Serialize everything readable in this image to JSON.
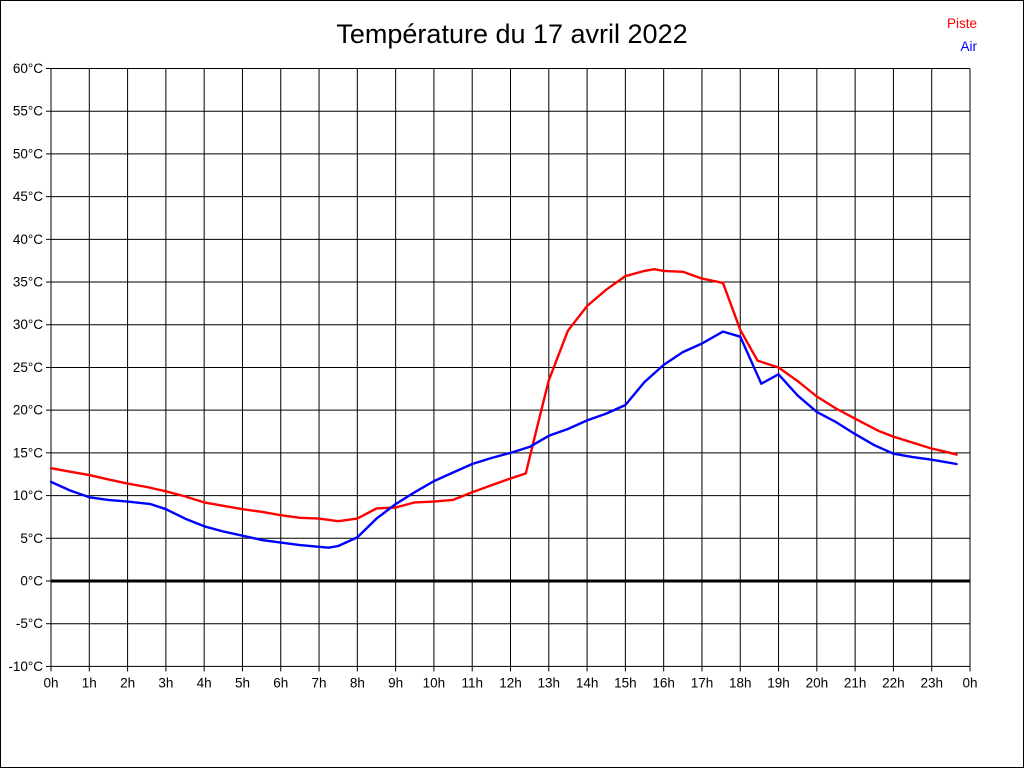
{
  "page": {
    "background": "#ffffff",
    "frame_border_color": "#000000"
  },
  "chart_data": {
    "type": "line",
    "title": "Température du 17 avril 2022",
    "grid": "on",
    "legend_position": "top-right",
    "x_axis": {
      "unit": "h",
      "range": [
        0,
        24
      ],
      "tick_hours": [
        0,
        1,
        2,
        3,
        4,
        5,
        6,
        7,
        8,
        9,
        10,
        11,
        12,
        13,
        14,
        15,
        16,
        17,
        18,
        19,
        20,
        21,
        22,
        23,
        24
      ],
      "tick_labels": [
        "0h",
        "1h",
        "2h",
        "3h",
        "4h",
        "5h",
        "6h",
        "7h",
        "8h",
        "9h",
        "10h",
        "11h",
        "12h",
        "13h",
        "14h",
        "15h",
        "16h",
        "17h",
        "18h",
        "19h",
        "20h",
        "21h",
        "22h",
        "23h",
        "0h"
      ]
    },
    "y_axis": {
      "unit": "°C",
      "range": [
        -10,
        60
      ],
      "tick_step": 5,
      "tick_values": [
        60,
        55,
        50,
        45,
        40,
        35,
        30,
        25,
        20,
        15,
        10,
        5,
        0,
        -5,
        -10
      ],
      "tick_labels": [
        "60°C",
        "55°C",
        "50°C",
        "45°C",
        "40°C",
        "35°C",
        "30°C",
        "25°C",
        "20°C",
        "15°C",
        "10°C",
        "5°C",
        "0°C",
        "-5°C",
        "-10°C"
      ]
    },
    "zero_line": {
      "value": 0,
      "color": "#000000"
    },
    "grid_color": "#000000",
    "series": [
      {
        "name": "Piste",
        "color": "#ff0000",
        "points": [
          [
            0,
            13.2
          ],
          [
            0.5,
            12.8
          ],
          [
            1,
            12.4
          ],
          [
            1.5,
            11.9
          ],
          [
            2,
            11.4
          ],
          [
            2.5,
            11.0
          ],
          [
            3,
            10.5
          ],
          [
            3.5,
            9.9
          ],
          [
            4,
            9.2
          ],
          [
            4.5,
            8.8
          ],
          [
            5,
            8.4
          ],
          [
            5.5,
            8.1
          ],
          [
            6,
            7.7
          ],
          [
            6.5,
            7.4
          ],
          [
            7,
            7.3
          ],
          [
            7.5,
            7.0
          ],
          [
            8,
            7.3
          ],
          [
            8.5,
            8.5
          ],
          [
            9,
            8.6
          ],
          [
            9.5,
            9.2
          ],
          [
            10,
            9.3
          ],
          [
            10.5,
            9.5
          ],
          [
            11,
            10.4
          ],
          [
            11.5,
            11.2
          ],
          [
            12,
            12.0
          ],
          [
            12.4,
            12.6
          ],
          [
            12.75,
            19.0
          ],
          [
            13,
            23.5
          ],
          [
            13.5,
            29.3
          ],
          [
            14,
            32.2
          ],
          [
            14.5,
            34.1
          ],
          [
            15,
            35.7
          ],
          [
            15.5,
            36.3
          ],
          [
            15.75,
            36.5
          ],
          [
            16,
            36.3
          ],
          [
            16.5,
            36.2
          ],
          [
            17,
            35.4
          ],
          [
            17.55,
            34.9
          ],
          [
            18,
            29.4
          ],
          [
            18.45,
            25.8
          ],
          [
            19,
            25.0
          ],
          [
            19.5,
            23.4
          ],
          [
            20,
            21.6
          ],
          [
            20.5,
            20.2
          ],
          [
            21,
            19.0
          ],
          [
            21.6,
            17.6
          ],
          [
            22,
            16.9
          ],
          [
            22.5,
            16.2
          ],
          [
            23,
            15.5
          ],
          [
            23.3,
            15.2
          ],
          [
            23.65,
            14.8
          ]
        ]
      },
      {
        "name": "Air",
        "color": "#0000ff",
        "points": [
          [
            0,
            11.6
          ],
          [
            0.5,
            10.6
          ],
          [
            1,
            9.8
          ],
          [
            1.5,
            9.5
          ],
          [
            2,
            9.3
          ],
          [
            2.6,
            9.0
          ],
          [
            3,
            8.4
          ],
          [
            3.5,
            7.3
          ],
          [
            4,
            6.4
          ],
          [
            4.5,
            5.8
          ],
          [
            5,
            5.3
          ],
          [
            5.5,
            4.8
          ],
          [
            6,
            4.5
          ],
          [
            6.5,
            4.2
          ],
          [
            7,
            4.0
          ],
          [
            7.25,
            3.9
          ],
          [
            7.5,
            4.1
          ],
          [
            8,
            5.1
          ],
          [
            8.5,
            7.3
          ],
          [
            9,
            9.0
          ],
          [
            9.5,
            10.4
          ],
          [
            10,
            11.7
          ],
          [
            10.5,
            12.7
          ],
          [
            11,
            13.7
          ],
          [
            11.5,
            14.4
          ],
          [
            12,
            15.0
          ],
          [
            12.5,
            15.7
          ],
          [
            13,
            17.0
          ],
          [
            13.5,
            17.8
          ],
          [
            14,
            18.8
          ],
          [
            14.5,
            19.6
          ],
          [
            15,
            20.6
          ],
          [
            15.5,
            23.3
          ],
          [
            16,
            25.3
          ],
          [
            16.5,
            26.8
          ],
          [
            17,
            27.8
          ],
          [
            17.55,
            29.2
          ],
          [
            18,
            28.6
          ],
          [
            18.55,
            23.1
          ],
          [
            19,
            24.2
          ],
          [
            19.5,
            21.7
          ],
          [
            20,
            19.8
          ],
          [
            20.5,
            18.6
          ],
          [
            21,
            17.2
          ],
          [
            21.5,
            15.9
          ],
          [
            22,
            14.9
          ],
          [
            22.5,
            14.5
          ],
          [
            23,
            14.2
          ],
          [
            23.65,
            13.7
          ]
        ]
      }
    ]
  }
}
